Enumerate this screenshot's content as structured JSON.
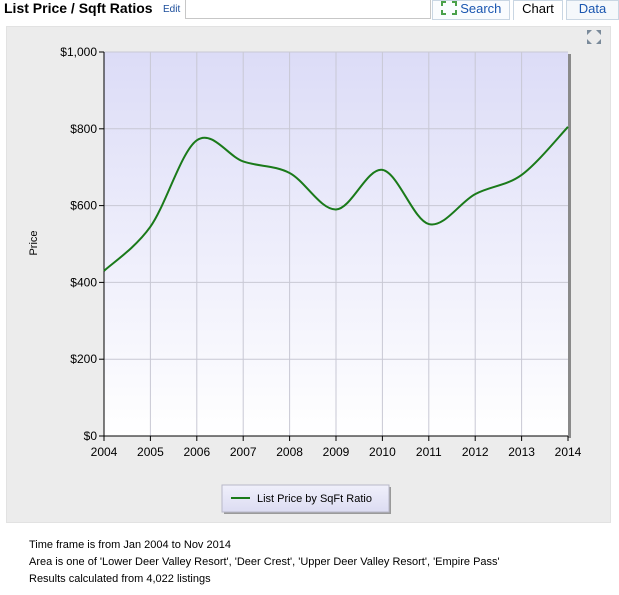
{
  "header": {
    "title": "List Price / Sqft Ratios",
    "edit_label": "Edit"
  },
  "tabs": [
    {
      "label": "Search",
      "icon": "search-icon"
    },
    {
      "label": "Chart"
    },
    {
      "label": "Data"
    }
  ],
  "chart_data": {
    "type": "line",
    "title": "",
    "xlabel": "",
    "ylabel": "Price",
    "x": [
      2004,
      2005,
      2006,
      2007,
      2008,
      2009,
      2010,
      2011,
      2012,
      2013,
      2014
    ],
    "series": [
      {
        "name": "List Price by SqFt Ratio",
        "color": "#1a7a1a",
        "values": [
          430,
          545,
          770,
          715,
          685,
          590,
          693,
          552,
          630,
          680,
          805
        ]
      }
    ],
    "ylim": [
      0,
      1000
    ],
    "xlim": [
      2004,
      2014
    ],
    "y_ticks": [
      0,
      200,
      400,
      600,
      800,
      1000
    ],
    "y_tick_labels": [
      "$0",
      "$200",
      "$400",
      "$600",
      "$800",
      "$1,000"
    ],
    "x_tick_labels": [
      "2004",
      "2005",
      "2006",
      "2007",
      "2008",
      "2009",
      "2010",
      "2011",
      "2012",
      "2013",
      "2014"
    ],
    "grid": true,
    "legend": "bottom-center"
  },
  "footer": {
    "line1": "Time frame is from Jan 2004 to Nov 2014",
    "line2": "Area is one of 'Lower Deer Valley Resort', 'Deer Crest', 'Upper Deer Valley Resort', 'Empire Pass'",
    "line3": "Results calculated from 4,022 listings"
  }
}
